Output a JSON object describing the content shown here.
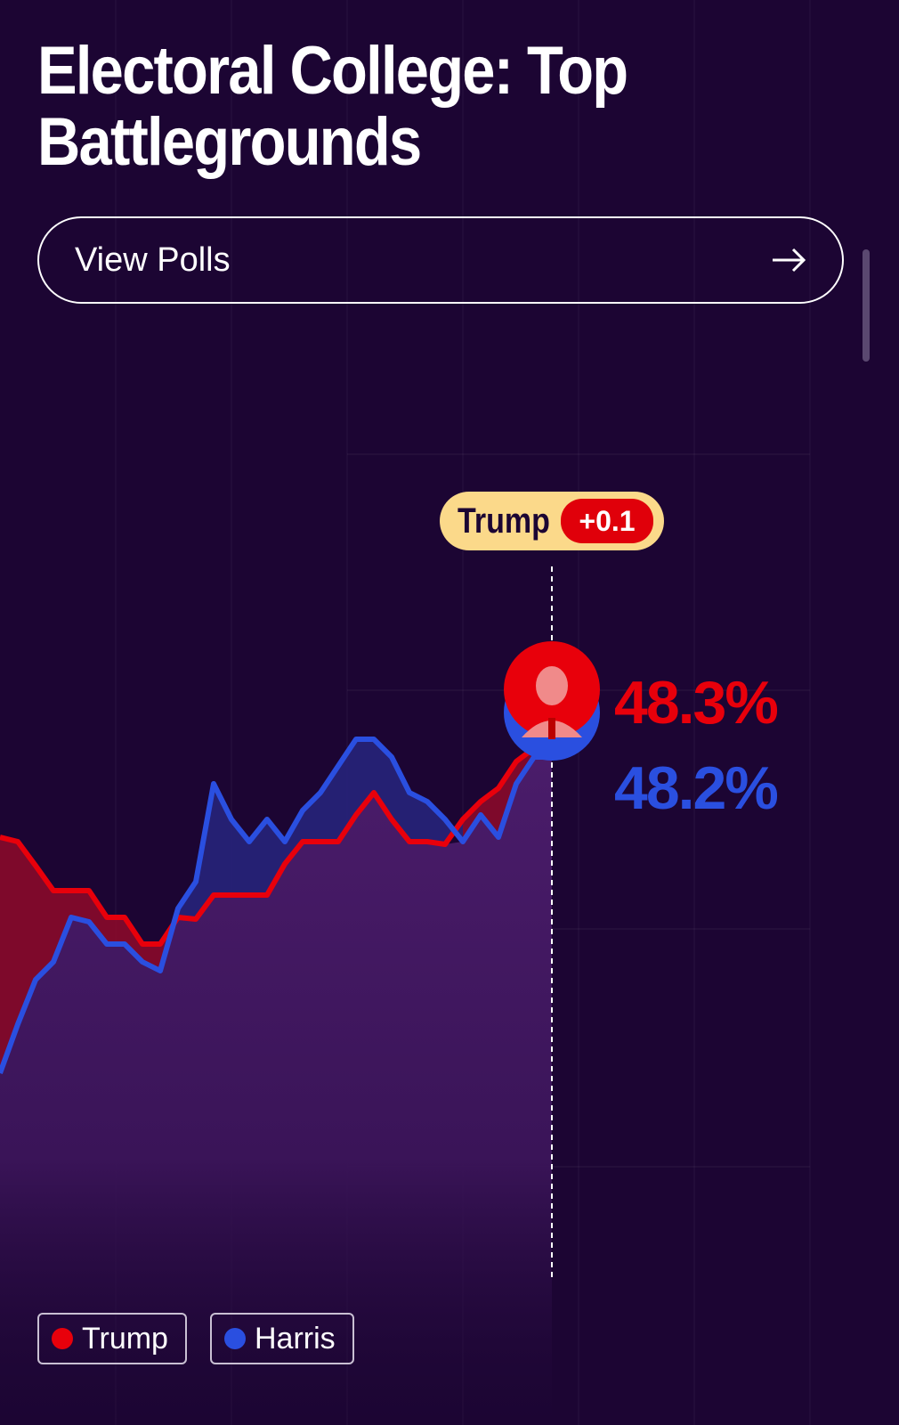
{
  "page": {
    "title": "Electoral College: Top Battlegrounds",
    "view_polls_label": "View Polls",
    "arrow_icon": "arrow-right-icon"
  },
  "chart_data": {
    "type": "line",
    "title": "",
    "xlabel": "",
    "ylabel": "",
    "x": [
      0,
      1,
      2,
      3,
      4,
      5,
      6,
      7,
      8,
      9,
      10,
      11,
      12,
      13,
      14,
      15,
      16,
      17,
      18,
      19,
      20,
      21,
      22,
      23,
      24,
      25,
      26,
      27,
      28,
      29,
      30,
      31
    ],
    "series": [
      {
        "name": "Trump",
        "color": "#e8000b",
        "values": [
          47.3,
          47.25,
          46.98,
          46.7,
          46.7,
          46.7,
          46.4,
          46.4,
          46.1,
          46.1,
          46.4,
          46.38,
          46.65,
          46.65,
          46.65,
          46.65,
          47.0,
          47.25,
          47.25,
          47.25,
          47.55,
          47.8,
          47.5,
          47.25,
          47.25,
          47.22,
          47.5,
          47.7,
          47.85,
          48.15,
          48.3,
          48.3
        ]
      },
      {
        "name": "Harris",
        "color": "#2a4fe0",
        "values": [
          44.65,
          45.2,
          45.7,
          45.9,
          46.4,
          46.35,
          46.1,
          46.1,
          45.9,
          45.8,
          46.5,
          46.8,
          47.9,
          47.5,
          47.25,
          47.5,
          47.25,
          47.6,
          47.8,
          48.1,
          48.4,
          48.4,
          48.2,
          47.8,
          47.7,
          47.5,
          47.25,
          47.55,
          47.3,
          47.9,
          48.2,
          48.2
        ]
      }
    ],
    "leader": {
      "name": "Trump",
      "margin": "+0.1"
    },
    "current": {
      "trump": "48.3%",
      "harris": "48.2%"
    },
    "legend": [
      "Trump",
      "Harris"
    ],
    "grid": true,
    "legend_position": "bottom-left"
  }
}
